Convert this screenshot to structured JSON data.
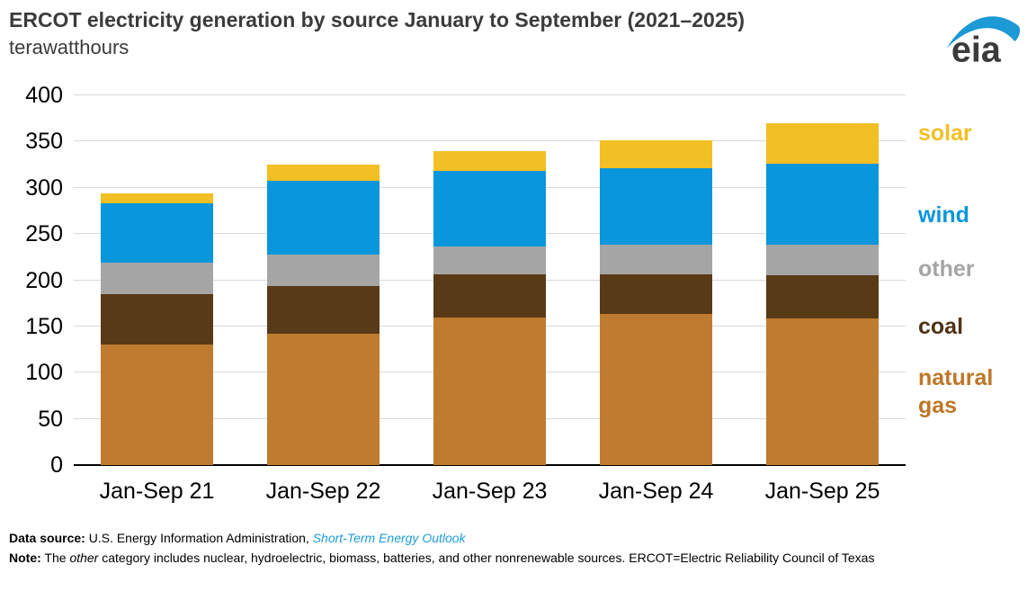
{
  "header": {
    "title": "ERCOT electricity generation by source January to September (2021–2025)",
    "subtitle": "terawatthours",
    "logo_text": "eia"
  },
  "chart_data": {
    "type": "bar",
    "stacked": true,
    "title": "ERCOT electricity generation by source January to September (2021–2025)",
    "ylabel": "terawatthours",
    "xlabel": "",
    "ylim": [
      0,
      400
    ],
    "yticks": [
      0,
      50,
      100,
      150,
      200,
      250,
      300,
      350,
      400
    ],
    "grid": true,
    "legend_position": "right",
    "categories": [
      "Jan-Sep 21",
      "Jan-Sep 22",
      "Jan-Sep 23",
      "Jan-Sep 24",
      "Jan-Sep 25"
    ],
    "series": [
      {
        "name": "natural gas",
        "color": "#BF7B2F",
        "values": [
          130,
          142,
          160,
          164,
          159
        ]
      },
      {
        "name": "coal",
        "color": "#593A17",
        "values": [
          55,
          52,
          46,
          42,
          46
        ]
      },
      {
        "name": "other",
        "color": "#A5A5A5",
        "values": [
          34,
          34,
          31,
          32,
          33
        ]
      },
      {
        "name": "wind",
        "color": "#0996DB",
        "values": [
          64,
          80,
          81,
          83,
          88
        ]
      },
      {
        "name": "solar",
        "color": "#F2BF24",
        "values": [
          11,
          17,
          22,
          30,
          44
        ]
      }
    ],
    "totals": [
      294,
      325,
      340,
      351,
      370
    ]
  },
  "legend": {
    "items": [
      {
        "label": "solar",
        "color": "#F2BF24"
      },
      {
        "label": "wind",
        "color": "#0996DB"
      },
      {
        "label": "other",
        "color": "#A5A5A5"
      },
      {
        "label": "coal",
        "color": "#4E3215"
      },
      {
        "label": "natural gas",
        "color": "#BE7727"
      }
    ]
  },
  "footer": {
    "source_label": "Data source:",
    "source_text": " U.S. Energy Information Administration, ",
    "source_link": "Short-Term Energy Outlook",
    "note_label": "Note:",
    "note_pre": " The ",
    "note_italic": "other",
    "note_post": " category includes nuclear, hydroelectric, biomass, batteries, and other nonrenewable sources. ERCOT=Electric Reliability Council of Texas"
  }
}
